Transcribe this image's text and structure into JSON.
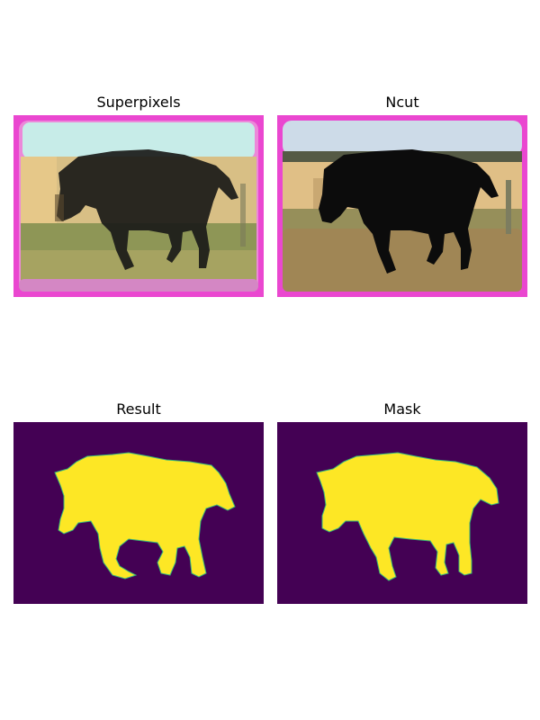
{
  "panels": {
    "superpixels": {
      "title": "Superpixels"
    },
    "ncut": {
      "title": "Ncut"
    },
    "result": {
      "title": "Result"
    },
    "mask": {
      "title": "Mask"
    }
  },
  "colors": {
    "background_purple": "#440154",
    "foreground_yellow": "#fde725",
    "edge_cyan": "#35b779",
    "border_magenta": "#ea47d0",
    "sky": "#cddbe8",
    "field_tan": "#e0bf86",
    "ground_brown": "#a08655",
    "horse_black": "#0c0c0c"
  }
}
